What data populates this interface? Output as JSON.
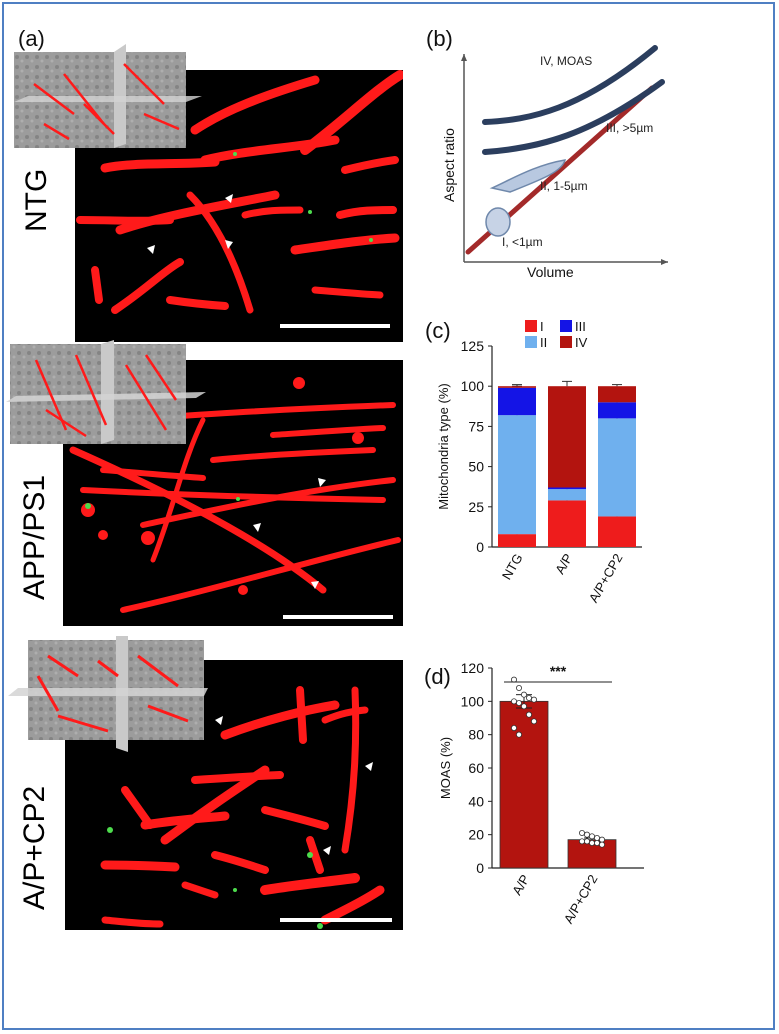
{
  "figure": {
    "panels": {
      "a": "(a)",
      "b": "(b)",
      "c": "(c)",
      "d": "(d)"
    },
    "groups": [
      "NTG",
      "APP/PS1",
      "A/P+CP2"
    ],
    "colors": {
      "type_I": "#ee1c1c",
      "type_II": "#6fb0ee",
      "type_III": "#1414e6",
      "type_IV": "#b3140f",
      "em_background": "#000000",
      "mito_red": "#ff1a1a",
      "schematic_line": "#a32a2a"
    }
  },
  "schematic_b": {
    "xlabel": "Volume",
    "ylabel": "Aspect ratio",
    "classes": [
      "I, <1µm",
      "II, 1-5µm",
      "III, >5µm",
      "IV, MOAS"
    ]
  },
  "chart_data": [
    {
      "type": "bar",
      "stacked": true,
      "panel": "(c)",
      "ylabel": "Mitochondria type (%)",
      "ylim": [
        0,
        125
      ],
      "yticks": [
        0,
        25,
        50,
        75,
        100,
        125
      ],
      "categories": [
        "NTG",
        "A/P",
        "A/P+CP2"
      ],
      "legend": {
        "placement": "top",
        "entries": [
          "I",
          "III",
          "II",
          "IV"
        ]
      },
      "series": [
        {
          "name": "I",
          "color": "#ee1c1c",
          "values": [
            8,
            29,
            19
          ],
          "errors": [
            2,
            2,
            1
          ]
        },
        {
          "name": "II",
          "color": "#6fb0ee",
          "values": [
            74,
            7,
            61
          ],
          "errors": [
            1,
            1,
            1
          ]
        },
        {
          "name": "III",
          "color": "#1414e6",
          "values": [
            17,
            1,
            10
          ],
          "errors": [
            1,
            1,
            1
          ]
        },
        {
          "name": "IV",
          "color": "#b3140f",
          "values": [
            1,
            63,
            10
          ],
          "errors": [
            1,
            3,
            1
          ]
        }
      ]
    },
    {
      "type": "bar",
      "panel": "(d)",
      "ylabel": "MOAS (%)",
      "ylim": [
        0,
        120
      ],
      "yticks": [
        0,
        20,
        40,
        60,
        80,
        100,
        120
      ],
      "categories": [
        "A/P",
        "A/P+CP2"
      ],
      "values": [
        100,
        17
      ],
      "errors": [
        4,
        1
      ],
      "color": "#b3140f",
      "significance": "***",
      "points": [
        [
          113,
          108,
          104,
          102,
          101,
          100,
          99,
          97,
          92,
          88,
          84,
          80
        ],
        [
          21,
          20,
          19,
          18,
          17,
          16,
          16,
          15,
          15,
          14
        ]
      ]
    }
  ]
}
